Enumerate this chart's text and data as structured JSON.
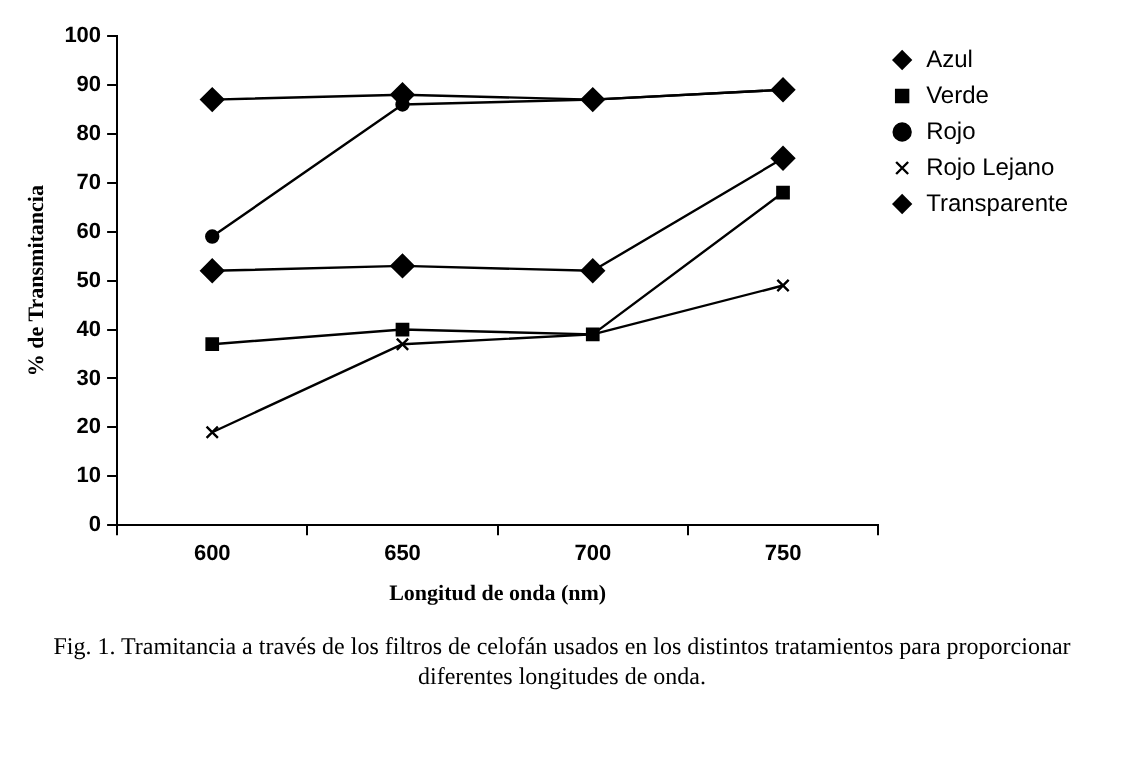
{
  "chart_data": {
    "type": "line",
    "xlabel": "Longitud de onda (nm)",
    "ylabel": "% de Transmitancia",
    "categories": [
      "600",
      "650",
      "700",
      "750"
    ],
    "series": [
      {
        "name": "Azul",
        "color": "#000000",
        "marker": "diamond",
        "values": [
          52,
          53,
          52,
          75
        ]
      },
      {
        "name": "Verde",
        "color": "#000000",
        "marker": "square",
        "values": [
          37,
          40,
          39,
          68
        ]
      },
      {
        "name": "Rojo",
        "color": "#000000",
        "marker": "circle",
        "values": [
          59,
          86,
          87,
          89
        ]
      },
      {
        "name": "Rojo Lejano",
        "color": "#000000",
        "marker": "cross",
        "values": [
          19,
          37,
          39,
          49
        ]
      },
      {
        "name": "Transparente",
        "color": "#000000",
        "marker": "diamond",
        "values": [
          87,
          88,
          87,
          89
        ]
      }
    ],
    "ylim": [
      0,
      100
    ],
    "yticks": [
      0,
      10,
      20,
      30,
      40,
      50,
      60,
      70,
      80,
      90,
      100
    ],
    "grid": false,
    "legend": "top right",
    "line_style": "solid",
    "annotations": [
      "Fig. 1. Tramitancia a través de los filtros de celofán usados  en los distintos tratamientos para proporcionar diferentes longitudes de onda."
    ]
  }
}
